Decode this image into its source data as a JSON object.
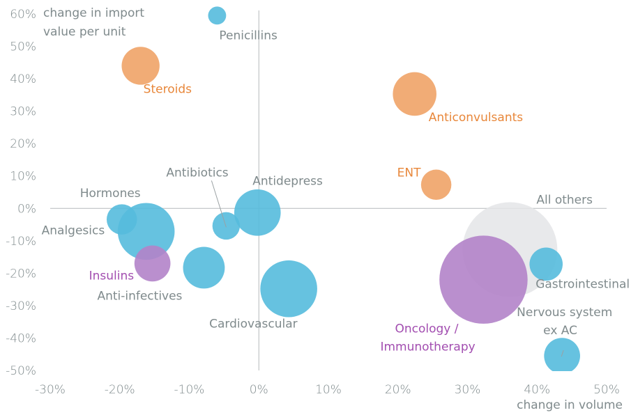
{
  "chart_data": {
    "type": "scatter",
    "subtype": "bubble",
    "title": "",
    "xlabel": "change in volume",
    "ylabel_lines": [
      "change in import",
      "value per unit"
    ],
    "xlim": [
      -30,
      50
    ],
    "ylim": [
      -50,
      60
    ],
    "x_ticks": [
      -30,
      -20,
      -10,
      0,
      10,
      20,
      30,
      40,
      50
    ],
    "y_ticks": [
      60,
      50,
      40,
      30,
      20,
      10,
      0,
      -10,
      -20,
      -30,
      -40,
      -50
    ],
    "x_tick_labels": [
      "-30%",
      "-20%",
      "-10%",
      "0%",
      "10%",
      "20%",
      "30%",
      "40%",
      "50%"
    ],
    "y_tick_labels": [
      "60%",
      "50%",
      "40%",
      "30%",
      "20%",
      "10%",
      "0%",
      "-10%",
      "-20%",
      "-30%",
      "-40%",
      "-50%"
    ],
    "grid": false,
    "zero_lines": true,
    "colors": {
      "blue": "#55bbdd",
      "orange": "#efa367",
      "purple": "#b383c9",
      "gray": "#e4e5e7",
      "text_gray": "#7f8a8c",
      "text_orange": "#e8873a",
      "text_purple": "#a24db0"
    },
    "series": [
      {
        "name": "Penicillins",
        "x": -6.0,
        "y": 59.5,
        "size": 0.19,
        "color": "blue",
        "label_color": "text_gray"
      },
      {
        "name": "Steroids",
        "x": -17.0,
        "y": 44.0,
        "size": 0.4,
        "color": "orange",
        "label_color": "text_orange"
      },
      {
        "name": "Anticonvulsants",
        "x": 22.4,
        "y": 35.3,
        "size": 0.46,
        "color": "orange",
        "label_color": "text_orange"
      },
      {
        "name": "ENT",
        "x": 25.5,
        "y": 7.3,
        "size": 0.32,
        "color": "orange",
        "label_color": "text_orange"
      },
      {
        "name": "Hormones",
        "x": -19.7,
        "y": -3.4,
        "size": 0.32,
        "color": "blue",
        "label_color": "text_gray"
      },
      {
        "name": "Analgesics",
        "x": -16.2,
        "y": -7.1,
        "size": 0.6,
        "color": "blue",
        "label_color": "text_gray"
      },
      {
        "name": "Insulins",
        "x": -15.3,
        "y": -17.0,
        "size": 0.38,
        "color": "purple",
        "label_color": "text_purple"
      },
      {
        "name": "Anti-infectives",
        "x": -7.9,
        "y": -18.3,
        "size": 0.44,
        "color": "blue",
        "label_color": "text_gray"
      },
      {
        "name": "Antibiotics",
        "x": -4.7,
        "y": -5.4,
        "size": 0.29,
        "color": "blue",
        "label_color": "text_gray"
      },
      {
        "name": "Antidepress",
        "x": -0.2,
        "y": -1.3,
        "size": 0.49,
        "color": "blue",
        "label_color": "text_gray"
      },
      {
        "name": "Cardiovascular",
        "x": 4.3,
        "y": -24.8,
        "size": 0.6,
        "color": "blue",
        "label_color": "text_gray"
      },
      {
        "name": "All others",
        "x": 36.1,
        "y": -12.7,
        "size": 1.0,
        "color": "gray",
        "label_color": "text_gray"
      },
      {
        "name": "Oncology / Immunotherapy",
        "x": 32.3,
        "y": -22.0,
        "size": 0.93,
        "color": "purple",
        "label_color": "text_purple"
      },
      {
        "name": "Gastrointestinal",
        "x": 41.3,
        "y": -17.2,
        "size": 0.35,
        "color": "blue",
        "label_color": "text_gray"
      },
      {
        "name": "Nervous system ex AC",
        "x": 43.6,
        "y": -45.5,
        "size": 0.38,
        "color": "blue",
        "label_color": "text_gray"
      }
    ],
    "annotations": [
      {
        "text_lines": [
          "Penicillins"
        ],
        "target": "Penicillins"
      },
      {
        "text_lines": [
          "Steroids"
        ],
        "target": "Steroids"
      },
      {
        "text_lines": [
          "Anticonvulsants"
        ],
        "target": "Anticonvulsants"
      },
      {
        "text_lines": [
          "ENT"
        ],
        "target": "ENT"
      },
      {
        "text_lines": [
          "Hormones"
        ],
        "target": "Hormones"
      },
      {
        "text_lines": [
          "Analgesics"
        ],
        "target": "Analgesics"
      },
      {
        "text_lines": [
          "Insulins"
        ],
        "target": "Insulins"
      },
      {
        "text_lines": [
          "Anti-infectives"
        ],
        "target": "Anti-infectives"
      },
      {
        "text_lines": [
          "Antibiotics"
        ],
        "target": "Antibiotics",
        "leader_line": true
      },
      {
        "text_lines": [
          "Antidepress"
        ],
        "target": "Antidepress"
      },
      {
        "text_lines": [
          "Cardiovascular"
        ],
        "target": "Cardiovascular"
      },
      {
        "text_lines": [
          "All others"
        ],
        "target": "All others"
      },
      {
        "text_lines": [
          "Oncology /",
          "Immunotherapy"
        ],
        "target": "Oncology / Immunotherapy"
      },
      {
        "text_lines": [
          "Gastrointestinal"
        ],
        "target": "Gastrointestinal"
      },
      {
        "text_lines": [
          "Nervous system",
          "ex AC"
        ],
        "target": "Nervous system ex AC",
        "leader_line": true
      }
    ]
  }
}
